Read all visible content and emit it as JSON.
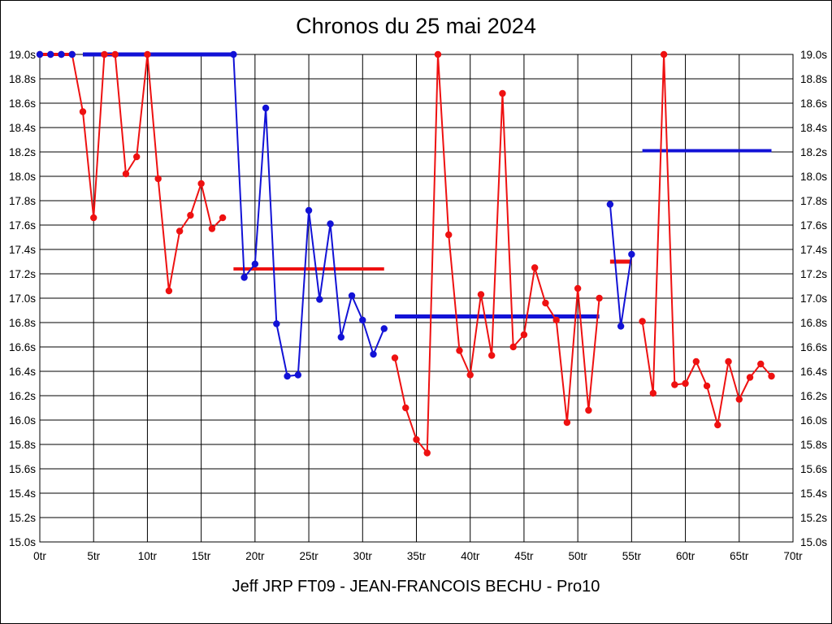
{
  "title": "Chronos du 25 mai 2024",
  "caption": "Jeff JRP FT09 - JEAN-FRANCOIS BECHU - Pro10",
  "colors": {
    "red": "#ee1111",
    "blue": "#1212d6",
    "grid": "#000000",
    "background": "#ffffff"
  },
  "chart_data": {
    "type": "line",
    "title": "Chronos du 25 mai 2024",
    "x_unit": "tr",
    "y_unit": "s",
    "xlim": [
      0,
      70
    ],
    "ylim": [
      15.0,
      19.0
    ],
    "x_tick_step": 5,
    "y_tick_step": 0.2,
    "grid": true,
    "x_ticks": [
      "0tr",
      "5tr",
      "10tr",
      "15tr",
      "20tr",
      "25tr",
      "30tr",
      "35tr",
      "40tr",
      "45tr",
      "50tr",
      "55tr",
      "60tr",
      "65tr",
      "70tr"
    ],
    "y_ticks": [
      "19.0s",
      "18.8s",
      "18.6s",
      "18.4s",
      "18.2s",
      "18.0s",
      "17.8s",
      "17.6s",
      "17.4s",
      "17.2s",
      "17.0s",
      "16.8s",
      "16.6s",
      "16.4s",
      "16.2s",
      "16.0s",
      "15.8s",
      "15.6s",
      "15.4s",
      "15.2s",
      "15.0s"
    ],
    "series": [
      {
        "name": "red-laps-stint-1",
        "color": "red",
        "line_width": 2,
        "points": [
          [
            0,
            19.0
          ],
          [
            1,
            19.0
          ],
          [
            2,
            19.0
          ],
          [
            3,
            19.0
          ],
          [
            4,
            18.53
          ],
          [
            5,
            17.66
          ],
          [
            6,
            19.0
          ],
          [
            7,
            19.0
          ],
          [
            8,
            18.02
          ],
          [
            9,
            18.16
          ],
          [
            10,
            19.0
          ],
          [
            11,
            17.98
          ],
          [
            12,
            17.06
          ],
          [
            13,
            17.55
          ],
          [
            14,
            17.68
          ],
          [
            15,
            17.94
          ],
          [
            16,
            17.57
          ],
          [
            17,
            17.66
          ]
        ]
      },
      {
        "name": "red-laps-stint-2",
        "color": "red",
        "line_width": 2,
        "points": [
          [
            33,
            16.51
          ],
          [
            34,
            16.1
          ],
          [
            35,
            15.84
          ],
          [
            36,
            15.73
          ],
          [
            37,
            19.0
          ],
          [
            38,
            17.52
          ],
          [
            39,
            16.57
          ],
          [
            40,
            16.37
          ],
          [
            41,
            17.03
          ],
          [
            42,
            16.53
          ],
          [
            43,
            18.68
          ],
          [
            44,
            16.6
          ],
          [
            45,
            16.7
          ],
          [
            46,
            17.25
          ],
          [
            47,
            16.96
          ],
          [
            48,
            16.82
          ],
          [
            49,
            15.98
          ],
          [
            50,
            17.08
          ],
          [
            51,
            16.08
          ],
          [
            52,
            17.0
          ]
        ]
      },
      {
        "name": "red-laps-stint-3",
        "color": "red",
        "line_width": 2,
        "points": [
          [
            56,
            16.81
          ],
          [
            57,
            16.22
          ],
          [
            58,
            19.0
          ],
          [
            59,
            16.29
          ],
          [
            60,
            16.3
          ],
          [
            61,
            16.48
          ],
          [
            62,
            16.28
          ],
          [
            63,
            15.96
          ],
          [
            64,
            16.48
          ],
          [
            65,
            16.17
          ],
          [
            66,
            16.35
          ],
          [
            67,
            16.46
          ],
          [
            68,
            16.36
          ]
        ]
      },
      {
        "name": "blue-start-markers",
        "color": "blue",
        "markers_only": true,
        "points": [
          [
            0,
            19.0
          ],
          [
            1,
            19.0
          ],
          [
            2,
            19.0
          ],
          [
            3,
            19.0
          ]
        ]
      },
      {
        "name": "blue-laps-stint-1",
        "color": "blue",
        "line_width": 2,
        "points": [
          [
            18,
            19.0
          ],
          [
            19,
            17.17
          ],
          [
            20,
            17.28
          ],
          [
            21,
            18.56
          ],
          [
            22,
            16.79
          ],
          [
            23,
            16.36
          ],
          [
            24,
            16.37
          ],
          [
            25,
            17.72
          ],
          [
            26,
            16.99
          ],
          [
            27,
            17.61
          ],
          [
            28,
            16.68
          ],
          [
            29,
            17.02
          ],
          [
            30,
            16.82
          ],
          [
            31,
            16.54
          ],
          [
            32,
            16.75
          ]
        ]
      },
      {
        "name": "blue-laps-stint-2",
        "color": "blue",
        "line_width": 2,
        "points": [
          [
            53,
            17.77
          ],
          [
            54,
            16.77
          ],
          [
            55,
            17.36
          ]
        ]
      }
    ],
    "segments": [
      {
        "name": "red-start-segment",
        "color": "red",
        "y": 19.0,
        "from": 0,
        "to": 3,
        "width": 4
      },
      {
        "name": "blue-avg-segment-1",
        "color": "blue",
        "y": 19.0,
        "from": 4,
        "to": 18,
        "width": 5
      },
      {
        "name": "red-avg-segment-1",
        "color": "red",
        "y": 17.24,
        "from": 18,
        "to": 32,
        "width": 4
      },
      {
        "name": "blue-avg-segment-2",
        "color": "blue",
        "y": 16.85,
        "from": 33,
        "to": 52,
        "width": 5
      },
      {
        "name": "red-avg-segment-2",
        "color": "red",
        "y": 17.3,
        "from": 53,
        "to": 55,
        "width": 5
      },
      {
        "name": "blue-avg-segment-3",
        "color": "blue",
        "y": 18.21,
        "from": 56,
        "to": 68,
        "width": 4
      }
    ]
  }
}
